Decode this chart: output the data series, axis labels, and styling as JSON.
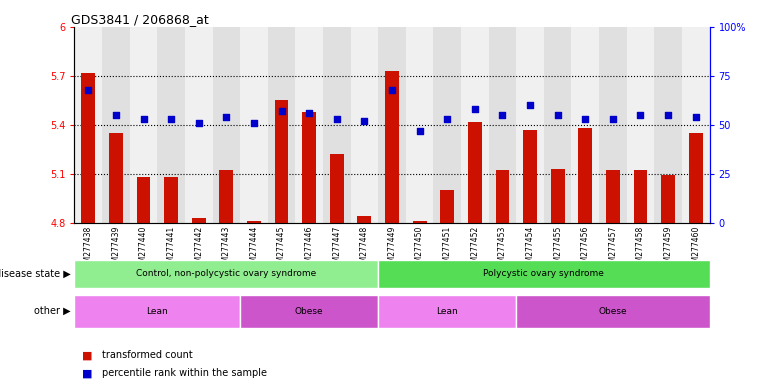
{
  "title": "GDS3841 / 206868_at",
  "samples": [
    "GSM277438",
    "GSM277439",
    "GSM277440",
    "GSM277441",
    "GSM277442",
    "GSM277443",
    "GSM277444",
    "GSM277445",
    "GSM277446",
    "GSM277447",
    "GSM277448",
    "GSM277449",
    "GSM277450",
    "GSM277451",
    "GSM277452",
    "GSM277453",
    "GSM277454",
    "GSM277455",
    "GSM277456",
    "GSM277457",
    "GSM277458",
    "GSM277459",
    "GSM277460"
  ],
  "bar_values": [
    5.72,
    5.35,
    5.08,
    5.08,
    4.83,
    5.12,
    4.81,
    5.55,
    5.48,
    5.22,
    4.84,
    5.73,
    4.81,
    5.0,
    5.42,
    5.12,
    5.37,
    5.13,
    5.38,
    5.12,
    5.12,
    5.09,
    5.35
  ],
  "dot_values": [
    68,
    55,
    53,
    53,
    51,
    54,
    51,
    57,
    56,
    53,
    52,
    68,
    47,
    53,
    58,
    55,
    60,
    55,
    53,
    53,
    55,
    55,
    54
  ],
  "bar_color": "#cc1100",
  "dot_color": "#0000cc",
  "ylim_left": [
    4.8,
    6.0
  ],
  "ylim_right": [
    0,
    100
  ],
  "yticks_left": [
    4.8,
    5.1,
    5.4,
    5.7,
    6.0
  ],
  "yticks_right": [
    0,
    25,
    50,
    75,
    100
  ],
  "yticklabels_left": [
    "4.8",
    "5.1",
    "5.4",
    "5.7",
    "6"
  ],
  "yticklabels_right": [
    "0",
    "25",
    "50",
    "75",
    "100%"
  ],
  "hlines": [
    5.1,
    5.4,
    5.7
  ],
  "disease_state_groups": [
    {
      "label": "Control, non-polycystic ovary syndrome",
      "start": 0,
      "end": 11,
      "color": "#90ee90"
    },
    {
      "label": "Polycystic ovary syndrome",
      "start": 11,
      "end": 23,
      "color": "#55dd55"
    }
  ],
  "other_groups": [
    {
      "label": "Lean",
      "start": 0,
      "end": 6,
      "color": "#ee82ee"
    },
    {
      "label": "Obese",
      "start": 6,
      "end": 11,
      "color": "#cc55cc"
    },
    {
      "label": "Lean",
      "start": 11,
      "end": 16,
      "color": "#ee82ee"
    },
    {
      "label": "Obese",
      "start": 16,
      "end": 23,
      "color": "#cc55cc"
    }
  ],
  "legend_items": [
    {
      "label": "transformed count",
      "color": "#cc1100"
    },
    {
      "label": "percentile rank within the sample",
      "color": "#0000cc"
    }
  ],
  "disease_state_label": "disease state",
  "other_label": "other",
  "background_color": "#ffffff",
  "col_colors": [
    "#f0f0f0",
    "#e0e0e0"
  ]
}
